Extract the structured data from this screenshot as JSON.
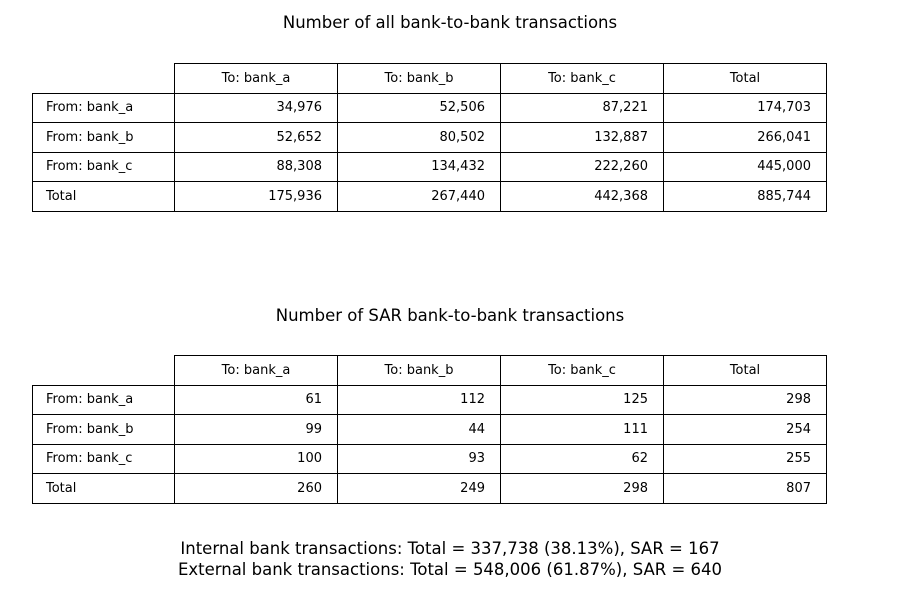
{
  "chart_data": [
    {
      "type": "table",
      "title": "Number of all bank-to-bank transactions",
      "columns": [
        "To: bank_a",
        "To: bank_b",
        "To: bank_c",
        "Total"
      ],
      "rows": [
        {
          "label": "From: bank_a",
          "values": [
            "34,976",
            "52,506",
            "87,221",
            "174,703"
          ]
        },
        {
          "label": "From: bank_b",
          "values": [
            "52,652",
            "80,502",
            "132,887",
            "266,041"
          ]
        },
        {
          "label": "From: bank_c",
          "values": [
            "88,308",
            "134,432",
            "222,260",
            "445,000"
          ]
        },
        {
          "label": "Total",
          "values": [
            "175,936",
            "267,440",
            "442,368",
            "885,744"
          ]
        }
      ]
    },
    {
      "type": "table",
      "title": "Number of SAR bank-to-bank transactions",
      "columns": [
        "To: bank_a",
        "To: bank_b",
        "To: bank_c",
        "Total"
      ],
      "rows": [
        {
          "label": "From: bank_a",
          "values": [
            "61",
            "112",
            "125",
            "298"
          ]
        },
        {
          "label": "From: bank_b",
          "values": [
            "99",
            "44",
            "111",
            "254"
          ]
        },
        {
          "label": "From: bank_c",
          "values": [
            "100",
            "93",
            "62",
            "255"
          ]
        },
        {
          "label": "Total",
          "values": [
            "260",
            "249",
            "298",
            "807"
          ]
        }
      ]
    }
  ],
  "footer": [
    "Internal bank transactions: Total = 337,738 (38.13%), SAR = 167",
    "External bank transactions: Total = 548,006 (61.87%), SAR = 640"
  ]
}
